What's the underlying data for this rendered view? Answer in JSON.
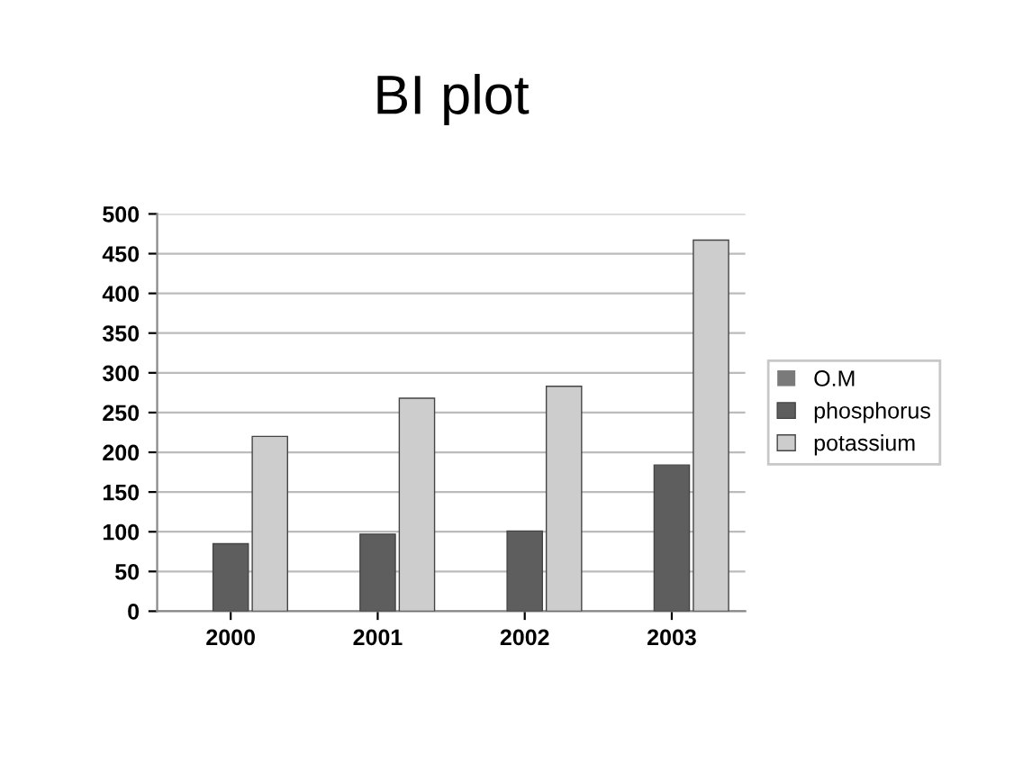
{
  "chart_data": {
    "type": "bar",
    "title": "BI plot",
    "categories": [
      "2000",
      "2001",
      "2002",
      "2003"
    ],
    "series": [
      {
        "name": "O.M",
        "color": "#7a7a7a",
        "values": [
          0,
          0,
          0,
          0
        ]
      },
      {
        "name": "phosphorus",
        "color": "#5e5e5e",
        "values": [
          85,
          97,
          101,
          184
        ]
      },
      {
        "name": "potassium",
        "color": "#cdcdcd",
        "values": [
          220,
          268,
          283,
          467
        ]
      }
    ],
    "ylim": [
      0,
      500
    ],
    "yticks": [
      0,
      50,
      100,
      150,
      200,
      250,
      300,
      350,
      400,
      450,
      500
    ],
    "grid": "y",
    "legend": "right"
  }
}
